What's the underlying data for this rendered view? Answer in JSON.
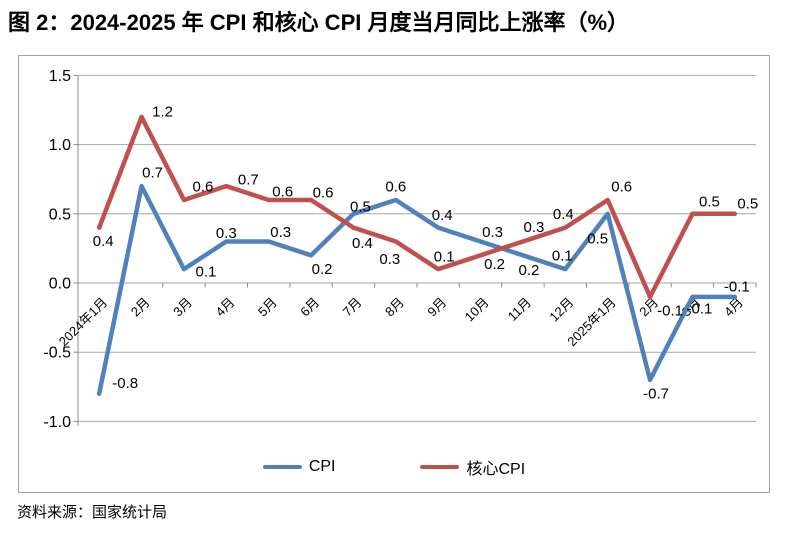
{
  "page": {
    "title": "图 2：2024-2025 年 CPI 和核心 CPI 月度当月同比上涨率（%）",
    "source": "资料来源：国家统计局"
  },
  "chart_data": {
    "type": "line",
    "title": "图 2：2024-2025 年 CPI 和核心 CPI 月度当月同比上涨率（%）",
    "categories": [
      "2024年1月",
      "2月",
      "3月",
      "4月",
      "5月",
      "6月",
      "7月",
      "8月",
      "9月",
      "10月",
      "11月",
      "12月",
      "2025年1月",
      "2月",
      "3月",
      "4月"
    ],
    "series": [
      {
        "name": "CPI",
        "color": "#4F81BD",
        "values": [
          -0.8,
          0.7,
          0.1,
          0.3,
          0.3,
          0.2,
          0.5,
          0.6,
          0.4,
          0.3,
          0.2,
          0.1,
          0.5,
          -0.7,
          -0.1,
          -0.1
        ]
      },
      {
        "name": "核心CPI",
        "color": "#C0504D",
        "values": [
          0.4,
          1.2,
          0.6,
          0.7,
          0.6,
          0.6,
          0.4,
          0.3,
          0.1,
          0.2,
          0.3,
          0.4,
          0.6,
          -0.1,
          0.5,
          0.5
        ]
      }
    ],
    "ylim": [
      -1.0,
      1.5
    ],
    "yticks": [
      1.5,
      1.0,
      0.5,
      0.0,
      -0.5,
      -1.0
    ],
    "ytick_labels": [
      "1.5",
      "1.0",
      "0.5",
      "0.0",
      "-0.5",
      "-1.0"
    ],
    "grid": true,
    "data_labels": true,
    "legend_position": "bottom-center",
    "xlabel": "",
    "ylabel": ""
  },
  "colors": {
    "gridline": "#a6a6a6",
    "axis": "#8c8c8c",
    "frame_border": "#a0a0a0",
    "text": "#000000"
  }
}
